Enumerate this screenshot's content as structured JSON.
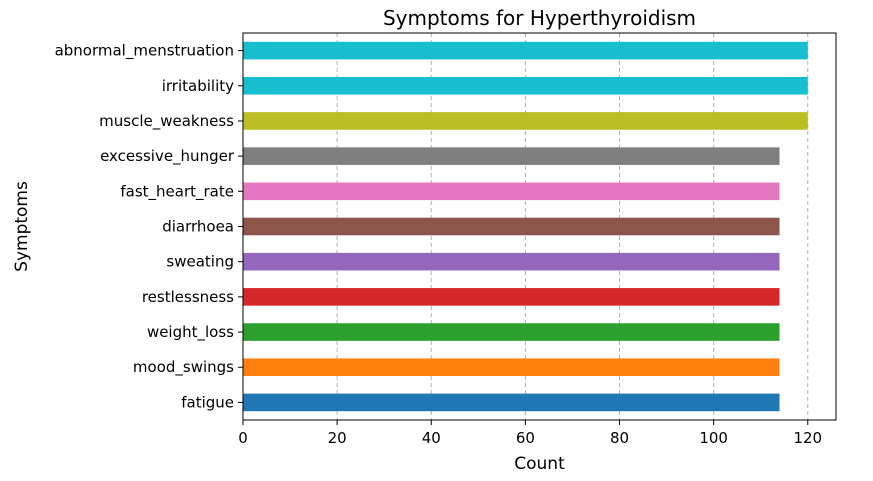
{
  "chart_data": {
    "type": "bar",
    "orientation": "horizontal",
    "title": "Symptoms for Hyperthyroidism",
    "xlabel": "Count",
    "ylabel": "Symptoms",
    "categories": [
      "fatigue",
      "mood_swings",
      "weight_loss",
      "restlessness",
      "sweating",
      "diarrhoea",
      "fast_heart_rate",
      "excessive_hunger",
      "muscle_weakness",
      "irritability",
      "abnormal_menstruation"
    ],
    "values": [
      114,
      114,
      114,
      114,
      114,
      114,
      114,
      114,
      120,
      120,
      120
    ],
    "colors": [
      "#1f77b4",
      "#ff7f0e",
      "#2ca02c",
      "#d62728",
      "#9467bd",
      "#8c564b",
      "#e377c2",
      "#7f7f7f",
      "#bcbd22",
      "#17becf",
      "#17becf"
    ],
    "xlim": [
      0,
      126
    ],
    "xticks": [
      0,
      20,
      40,
      60,
      80,
      100,
      120
    ],
    "grid": "x-dashed",
    "legend": "none"
  }
}
